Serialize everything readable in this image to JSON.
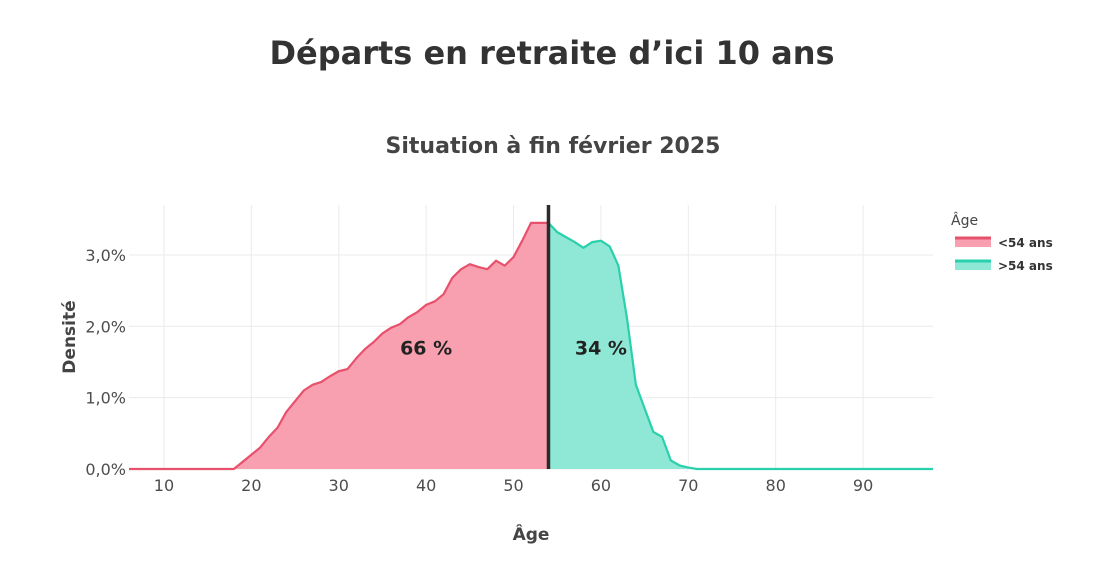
{
  "chart_data": {
    "type": "area",
    "title": "Départs en retraite d’ici 10 ans",
    "subtitle": "Situation à fin février 2025",
    "xlabel": "Âge",
    "ylabel": "Densité",
    "xlim": [
      6,
      98
    ],
    "ylim": [
      0,
      0.037
    ],
    "x_ticks": [
      10,
      20,
      30,
      40,
      50,
      60,
      70,
      80,
      90
    ],
    "y_ticks": [
      0,
      0.01,
      0.02,
      0.03
    ],
    "y_tick_labels": [
      "0,0%",
      "1,0%",
      "2,0%",
      "3,0%"
    ],
    "grid": true,
    "threshold": 54,
    "legend": {
      "title": "Âge",
      "placement": "right",
      "entries": [
        "<54 ans",
        ">54 ans"
      ]
    },
    "series": [
      {
        "name": "<54 ans",
        "color": "#e8516c",
        "fill": "#f8a0b0",
        "points": [
          [
            6,
            0.0
          ],
          [
            10,
            0.0
          ],
          [
            15,
            0.0
          ],
          [
            18,
            0.0
          ],
          [
            19,
            0.001
          ],
          [
            20,
            0.002
          ],
          [
            21,
            0.003
          ],
          [
            22,
            0.0045
          ],
          [
            23,
            0.0058
          ],
          [
            24,
            0.008
          ],
          [
            25,
            0.0095
          ],
          [
            26,
            0.011
          ],
          [
            27,
            0.0118
          ],
          [
            28,
            0.0122
          ],
          [
            29,
            0.013
          ],
          [
            30,
            0.0137
          ],
          [
            31,
            0.014
          ],
          [
            32,
            0.0155
          ],
          [
            33,
            0.0168
          ],
          [
            34,
            0.0178
          ],
          [
            35,
            0.019
          ],
          [
            36,
            0.0198
          ],
          [
            37,
            0.0203
          ],
          [
            38,
            0.0213
          ],
          [
            39,
            0.022
          ],
          [
            40,
            0.023
          ],
          [
            41,
            0.0235
          ],
          [
            42,
            0.0245
          ],
          [
            43,
            0.0268
          ],
          [
            44,
            0.028
          ],
          [
            45,
            0.0287
          ],
          [
            46,
            0.0283
          ],
          [
            47,
            0.028
          ],
          [
            48,
            0.0292
          ],
          [
            49,
            0.0285
          ],
          [
            50,
            0.0297
          ],
          [
            51,
            0.032
          ],
          [
            52,
            0.0345
          ],
          [
            53,
            0.0345
          ],
          [
            54,
            0.0345
          ]
        ]
      },
      {
        "name": ">54 ans",
        "color": "#2acfab",
        "fill": "#8fe8d5",
        "points": [
          [
            54,
            0.0345
          ],
          [
            55,
            0.0332
          ],
          [
            56,
            0.0325
          ],
          [
            57,
            0.0318
          ],
          [
            58,
            0.031
          ],
          [
            59,
            0.0318
          ],
          [
            60,
            0.032
          ],
          [
            61,
            0.0312
          ],
          [
            62,
            0.0285
          ],
          [
            63,
            0.021
          ],
          [
            64,
            0.0118
          ],
          [
            65,
            0.0085
          ],
          [
            66,
            0.0052
          ],
          [
            67,
            0.0045
          ],
          [
            68,
            0.0012
          ],
          [
            69,
            0.0005
          ],
          [
            70,
            0.0002
          ],
          [
            71,
            0.0
          ],
          [
            80,
            0.0
          ],
          [
            90,
            0.0
          ],
          [
            98,
            0.0
          ]
        ]
      }
    ],
    "annotations": [
      {
        "text": "66 %",
        "x": 40,
        "y": 0.017
      },
      {
        "text": "34 %",
        "x": 60,
        "y": 0.017
      }
    ]
  }
}
